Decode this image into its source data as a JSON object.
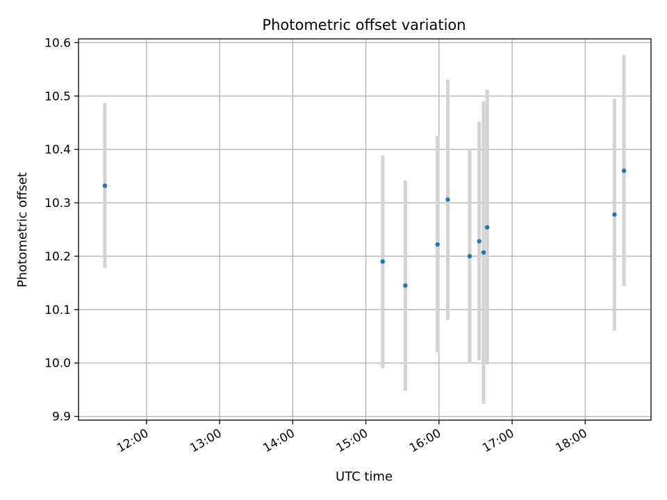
{
  "chart_data": {
    "type": "scatter",
    "title": "Photometric offset variation",
    "xlabel": "UTC time",
    "ylabel": "Photometric offset",
    "grid": true,
    "xlim_hours": [
      11.07,
      18.9
    ],
    "ylim": [
      9.893,
      10.607
    ],
    "x_ticks": [
      {
        "value": 12,
        "label": "12:00"
      },
      {
        "value": 13,
        "label": "13:00"
      },
      {
        "value": 14,
        "label": "14:00"
      },
      {
        "value": 15,
        "label": "15:00"
      },
      {
        "value": 16,
        "label": "16:00"
      },
      {
        "value": 17,
        "label": "17:00"
      },
      {
        "value": 18,
        "label": "18:00"
      }
    ],
    "y_ticks": [
      {
        "value": 9.9,
        "label": "9.9"
      },
      {
        "value": 10.0,
        "label": "10.0"
      },
      {
        "value": 10.1,
        "label": "10.1"
      },
      {
        "value": 10.2,
        "label": "10.2"
      },
      {
        "value": 10.3,
        "label": "10.3"
      },
      {
        "value": 10.4,
        "label": "10.4"
      },
      {
        "value": 10.5,
        "label": "10.5"
      },
      {
        "value": 10.6,
        "label": "10.6"
      }
    ],
    "marker_color": "#1f77b4",
    "errorbar_color": "#d3d3d3",
    "points": [
      {
        "time_hours": 11.43,
        "value": 10.332,
        "err_low": 10.178,
        "err_high": 10.487
      },
      {
        "time_hours": 15.23,
        "value": 10.19,
        "err_low": 9.99,
        "err_high": 10.389
      },
      {
        "time_hours": 15.54,
        "value": 10.145,
        "err_low": 9.948,
        "err_high": 10.342
      },
      {
        "time_hours": 15.98,
        "value": 10.222,
        "err_low": 10.02,
        "err_high": 10.425
      },
      {
        "time_hours": 16.12,
        "value": 10.306,
        "err_low": 10.081,
        "err_high": 10.531
      },
      {
        "time_hours": 16.42,
        "value": 10.2,
        "err_low": 9.999,
        "err_high": 10.4
      },
      {
        "time_hours": 16.55,
        "value": 10.228,
        "err_low": 10.005,
        "err_high": 10.452
      },
      {
        "time_hours": 16.61,
        "value": 10.207,
        "err_low": 9.924,
        "err_high": 10.49
      },
      {
        "time_hours": 16.66,
        "value": 10.254,
        "err_low": 9.997,
        "err_high": 10.512
      },
      {
        "time_hours": 18.4,
        "value": 10.278,
        "err_low": 10.061,
        "err_high": 10.495
      },
      {
        "time_hours": 18.53,
        "value": 10.36,
        "err_low": 10.144,
        "err_high": 10.577
      }
    ]
  }
}
